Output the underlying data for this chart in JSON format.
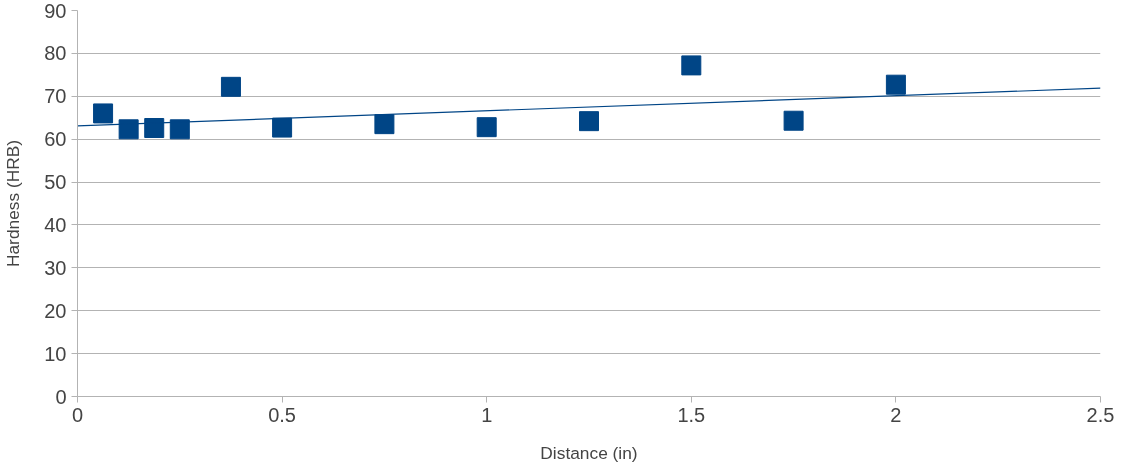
{
  "chart_data": {
    "type": "scatter",
    "xlabel": "Distance (in)",
    "ylabel": "Hardness (HRB)",
    "xlim": [
      0,
      2.5
    ],
    "xticks": [
      0,
      0.5,
      1,
      1.5,
      2,
      2.5
    ],
    "ylim": [
      0,
      90
    ],
    "yticks": [
      0,
      10,
      20,
      30,
      40,
      50,
      60,
      70,
      80,
      90
    ],
    "grid": "y",
    "marker": "square",
    "series": [
      {
        "color": "#004586",
        "x": [
          0.0625,
          0.125,
          0.1875,
          0.25,
          0.375,
          0.5,
          0.75,
          1,
          1.25,
          1.5,
          1.75,
          2
        ],
        "values": [
          66,
          62.3,
          62.6,
          62.3,
          72.2,
          62.7,
          63.5,
          62.8,
          64.2,
          77.2,
          64.3,
          72.7
        ]
      },
      {
        "type": "line",
        "marker": "none",
        "color": "#004586",
        "x": [
          0,
          2.5
        ],
        "values": [
          63.1,
          71.9
        ]
      }
    ]
  }
}
